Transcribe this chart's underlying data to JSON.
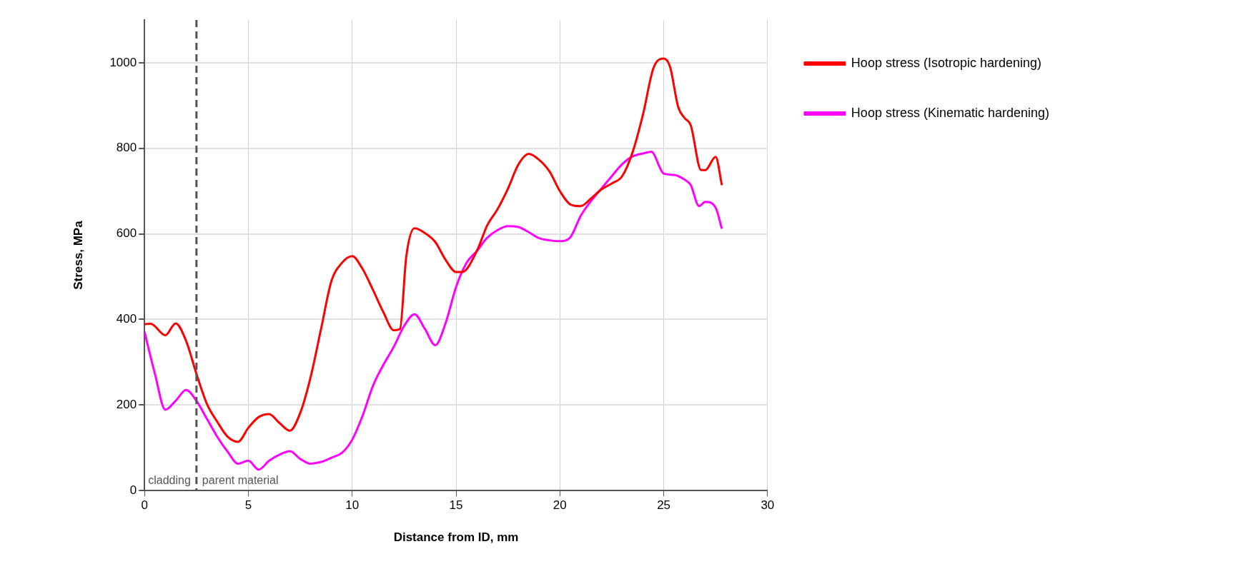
{
  "chart_data": {
    "type": "line",
    "xlabel": "Distance from ID, mm",
    "ylabel": "Stress, MPa",
    "xlim": [
      0,
      30
    ],
    "xticks": [
      0,
      5,
      10,
      15,
      20,
      25,
      30
    ],
    "ylim": [
      0,
      1100
    ],
    "yticks": [
      0,
      200,
      400,
      600,
      800,
      1000
    ],
    "grid": true,
    "legend": "right",
    "marker": "none",
    "line_style": "solid",
    "series": [
      {
        "name": "Hoop stress (Isotropic hardening)",
        "color": "#ff0000",
        "x": [
          0,
          0.3,
          1,
          1.5,
          2,
          2.5,
          3,
          3.5,
          4,
          4.5,
          5,
          5.5,
          6,
          6.5,
          7,
          7.5,
          8,
          8.5,
          9,
          9.5,
          10,
          10.5,
          11,
          11.5,
          12,
          12.3,
          12.6,
          13,
          13.5,
          14,
          14.5,
          15,
          15.3,
          16,
          16.5,
          17,
          17.5,
          18,
          18.5,
          19,
          19.5,
          20,
          20.5,
          21,
          21.5,
          22,
          22.5,
          23,
          23.5,
          24,
          24.5,
          25,
          25.3,
          25.7,
          26,
          26.3,
          26.8,
          27,
          27.5,
          27.8
        ],
        "values": [
          389,
          390,
          363,
          391,
          350,
          273,
          203,
          161,
          126,
          114,
          147,
          172,
          179,
          158,
          140,
          182,
          266,
          378,
          490,
          532,
          548,
          518,
          469,
          417,
          375,
          378,
          546,
          613,
          602,
          581,
          539,
          511,
          511,
          560,
          620,
          658,
          706,
          762,
          787,
          773,
          746,
          700,
          669,
          665,
          683,
          704,
          718,
          735,
          791,
          879,
          987,
          1010,
          991,
          896,
          871,
          854,
          749,
          749,
          780,
          714
        ]
      },
      {
        "name": "Hoop stress (Kinematic hardening)",
        "color": "#ff00ff",
        "x": [
          0,
          0.5,
          1,
          1.5,
          2,
          2.5,
          3,
          3.5,
          4,
          4.5,
          5,
          5.5,
          6,
          6.5,
          7,
          7.5,
          8,
          8.5,
          9,
          9.5,
          10,
          10.5,
          11,
          11.5,
          12,
          12.5,
          13,
          13.5,
          14,
          14.5,
          15,
          15.5,
          16,
          16.5,
          17,
          17.5,
          18,
          18.5,
          19,
          19.5,
          20,
          20.5,
          21,
          21.5,
          22,
          22.5,
          23,
          23.5,
          24,
          24.4,
          25,
          25.5,
          26,
          26.3,
          26.7,
          27,
          27.5,
          27.8
        ],
        "values": [
          371,
          273,
          189,
          210,
          235,
          210,
          168,
          126,
          91,
          63,
          70,
          49,
          70,
          84,
          92,
          74,
          63,
          67,
          77,
          88,
          119,
          175,
          245,
          294,
          336,
          385,
          412,
          378,
          340,
          392,
          476,
          532,
          560,
          591,
          609,
          618,
          616,
          604,
          590,
          585,
          583,
          592,
          642,
          677,
          706,
          735,
          763,
          781,
          788,
          792,
          741,
          738,
          727,
          714,
          665,
          675,
          661,
          612
        ]
      }
    ],
    "ref_lines": [
      {
        "axis": "x",
        "value": 2.5,
        "color": "#555555",
        "line_style": "dashed"
      }
    ],
    "annotations": [
      "cladding",
      "parent material"
    ]
  }
}
